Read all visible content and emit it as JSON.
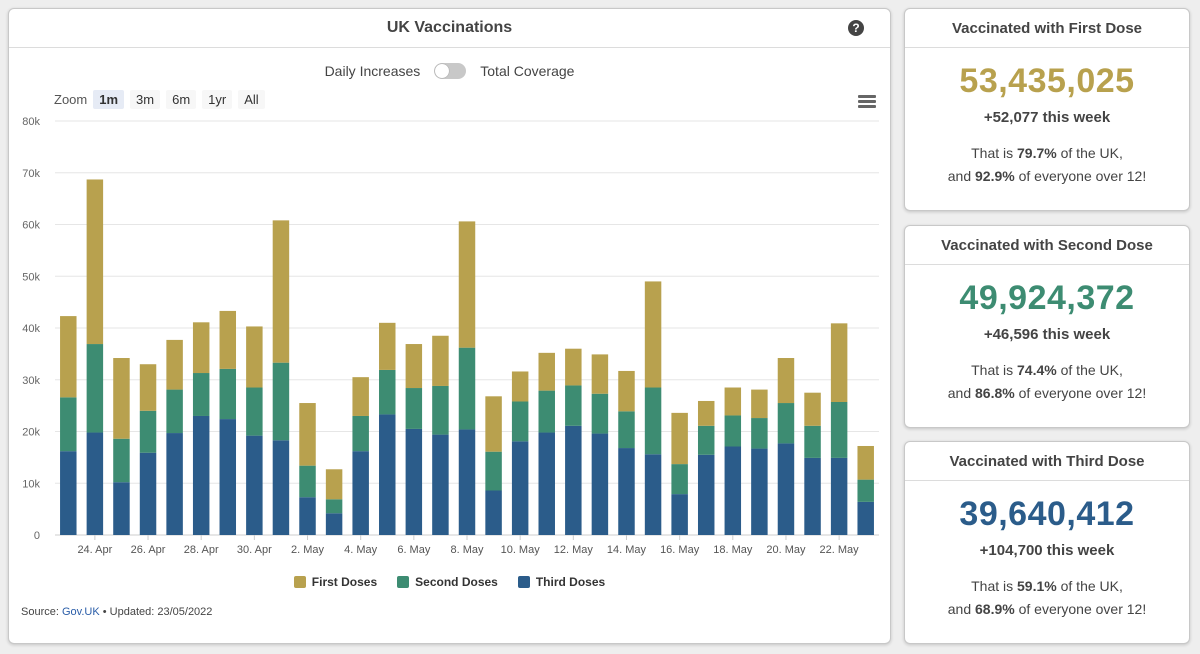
{
  "chart_panel": {
    "title": "UK Vaccinations",
    "toggle": {
      "left_label": "Daily Increases",
      "right_label": "Total Coverage"
    },
    "zoom": {
      "label": "Zoom",
      "options": [
        "1m",
        "3m",
        "6m",
        "1yr",
        "All"
      ],
      "active": "1m"
    },
    "source_label": "Source:",
    "source_link": "Gov.UK",
    "updated_text": "• Updated: 23/05/2022"
  },
  "chart_data": {
    "type": "bar",
    "stacked": true,
    "ylim": [
      0,
      80000
    ],
    "y_ticks": [
      0,
      10000,
      20000,
      30000,
      40000,
      50000,
      60000,
      70000,
      80000
    ],
    "y_tick_labels": [
      "0",
      "10k",
      "20k",
      "30k",
      "40k",
      "50k",
      "60k",
      "70k",
      "80k"
    ],
    "x_tick_labels": [
      "24. Apr",
      "26. Apr",
      "28. Apr",
      "30. Apr",
      "2. May",
      "4. May",
      "6. May",
      "8. May",
      "10. May",
      "12. May",
      "14. May",
      "16. May",
      "18. May",
      "20. May",
      "22. May"
    ],
    "categories": [
      "23 Apr",
      "24 Apr",
      "25 Apr",
      "26 Apr",
      "27 Apr",
      "28 Apr",
      "29 Apr",
      "30 Apr",
      "1 May",
      "2 May",
      "3 May",
      "4 May",
      "5 May",
      "6 May",
      "7 May",
      "8 May",
      "9 May",
      "10 May",
      "11 May",
      "12 May",
      "13 May",
      "14 May",
      "15 May",
      "16 May",
      "17 May",
      "18 May",
      "19 May",
      "20 May",
      "21 May",
      "22 May",
      "23 May"
    ],
    "legend_position": "bottom",
    "grid": true,
    "series": [
      {
        "name": "Third Doses",
        "color": "#2b5c8a",
        "values": [
          16200,
          19800,
          10200,
          15900,
          19700,
          23000,
          22400,
          19200,
          18300,
          7300,
          4200,
          16200,
          23300,
          20500,
          19400,
          20400,
          8600,
          18100,
          19800,
          21100,
          19600,
          16800,
          15600,
          7900,
          15500,
          17100,
          16700,
          17700,
          14900,
          14900,
          6400
        ]
      },
      {
        "name": "Second Doses",
        "color": "#3d8c72",
        "values": [
          10400,
          17100,
          8400,
          8100,
          8400,
          8300,
          9700,
          9300,
          15000,
          6100,
          2700,
          6800,
          8600,
          7900,
          9400,
          15800,
          7500,
          7700,
          8100,
          7800,
          7700,
          7100,
          12900,
          5800,
          5600,
          6000,
          5900,
          7800,
          6200,
          10800,
          4300
        ]
      },
      {
        "name": "First Doses",
        "color": "#b8a14e",
        "values": [
          15700,
          31800,
          15600,
          9000,
          9600,
          9800,
          11200,
          11800,
          27500,
          12100,
          5800,
          7500,
          9100,
          8500,
          9700,
          24400,
          10700,
          5800,
          7300,
          7100,
          7600,
          7800,
          20500,
          9900,
          4800,
          5400,
          5500,
          8700,
          6400,
          15200,
          6500
        ]
      }
    ]
  },
  "stats": [
    {
      "title": "Vaccinated with First Dose",
      "number": "53,435,025",
      "color": "#b8a14e",
      "week": "+52,077 this week",
      "line1_pre": "That is ",
      "line1_pct": "79.7%",
      "line1_post": " of the UK,",
      "line2_pre": "and ",
      "line2_pct": "92.9%",
      "line2_post": " of everyone over 12!"
    },
    {
      "title": "Vaccinated with Second Dose",
      "number": "49,924,372",
      "color": "#3d8c72",
      "week": "+46,596 this week",
      "line1_pre": "That is ",
      "line1_pct": "74.4%",
      "line1_post": " of the UK,",
      "line2_pre": "and ",
      "line2_pct": "86.8%",
      "line2_post": " of everyone over 12!"
    },
    {
      "title": "Vaccinated with Third Dose",
      "number": "39,640,412",
      "color": "#2b5c8a",
      "week": "+104,700 this week",
      "line1_pre": "That is ",
      "line1_pct": "59.1%",
      "line1_post": " of the UK,",
      "line2_pre": "and ",
      "line2_pct": "68.9%",
      "line2_post": " of everyone over 12!"
    }
  ]
}
